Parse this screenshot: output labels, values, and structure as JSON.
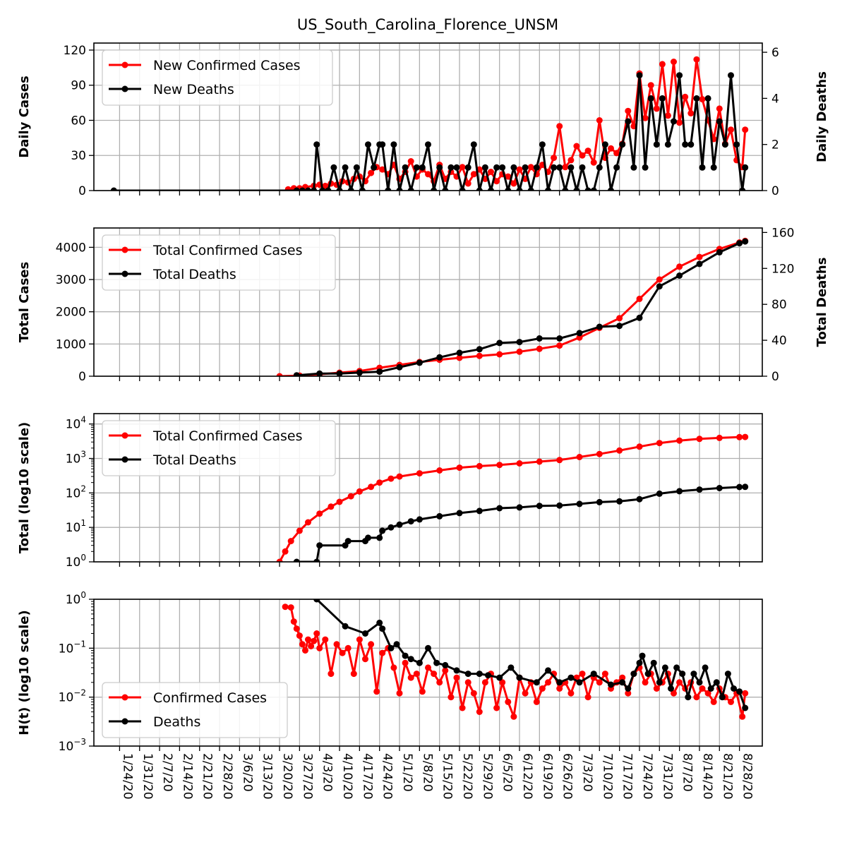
{
  "figure": {
    "title": "US_South_Carolina_Florence_UNSM"
  },
  "colors": {
    "cases": "#ff0000",
    "deaths": "#000000",
    "grid": "#b0b0b0"
  },
  "dates": [
    "1/24/20",
    "1/31/20",
    "2/7/20",
    "2/14/20",
    "2/21/20",
    "2/28/20",
    "3/6/20",
    "3/13/20",
    "3/20/20",
    "3/27/20",
    "4/3/20",
    "4/10/20",
    "4/17/20",
    "4/24/20",
    "5/1/20",
    "5/8/20",
    "5/15/20",
    "5/22/20",
    "5/29/20",
    "6/5/20",
    "6/12/20",
    "6/19/20",
    "6/26/20",
    "7/3/20",
    "7/10/20",
    "7/17/20",
    "7/24/20",
    "7/31/20",
    "8/7/20",
    "8/14/20",
    "8/21/20",
    "8/28/20"
  ],
  "chart_data": [
    {
      "type": "line",
      "title": "US_South_Carolina_Florence_UNSM",
      "ylabel": "Daily Cases",
      "ylabel_right": "Daily Deaths",
      "ylim": [
        0,
        126
      ],
      "yticks": [
        "0",
        "30",
        "60",
        "90",
        "120"
      ],
      "ylim_right": [
        0,
        6.4
      ],
      "yticks_right": [
        "0",
        "2",
        "4",
        "6"
      ],
      "grid": true,
      "legend": "upper-left",
      "series": [
        {
          "name": "New Confirmed Cases",
          "axis": "left",
          "x": [
            "3/23/20",
            "3/25/20",
            "3/27/20",
            "3/29/20",
            "4/1/20",
            "4/3/20",
            "4/5/20",
            "4/7/20",
            "4/9/20",
            "4/11/20",
            "4/13/20",
            "4/15/20",
            "4/17/20",
            "4/19/20",
            "4/21/20",
            "4/23/20",
            "4/25/20",
            "4/27/20",
            "4/29/20",
            "5/1/20",
            "5/3/20",
            "5/5/20",
            "5/7/20",
            "5/9/20",
            "5/11/20",
            "5/13/20",
            "5/15/20",
            "5/17/20",
            "5/19/20",
            "5/21/20",
            "5/23/20",
            "5/25/20",
            "5/27/20",
            "5/29/20",
            "5/31/20",
            "6/2/20",
            "6/4/20",
            "6/6/20",
            "6/8/20",
            "6/10/20",
            "6/12/20",
            "6/14/20",
            "6/16/20",
            "6/18/20",
            "6/20/20",
            "6/22/20",
            "6/24/20",
            "6/26/20",
            "6/28/20",
            "6/30/20",
            "7/2/20",
            "7/4/20",
            "7/6/20",
            "7/8/20",
            "7/10/20",
            "7/12/20",
            "7/14/20",
            "7/16/20",
            "7/18/20",
            "7/20/20",
            "7/22/20",
            "7/24/20",
            "7/26/20",
            "7/28/20",
            "7/30/20",
            "8/1/20",
            "8/3/20",
            "8/5/20",
            "8/7/20",
            "8/9/20",
            "8/11/20",
            "8/13/20",
            "8/15/20",
            "8/17/20",
            "8/19/20",
            "8/21/20",
            "8/23/20",
            "8/25/20",
            "8/27/20",
            "8/29/20",
            "8/30/20"
          ],
          "values": [
            1,
            2,
            2,
            3,
            4,
            5,
            4,
            6,
            5,
            8,
            7,
            10,
            12,
            8,
            15,
            20,
            18,
            14,
            22,
            10,
            16,
            25,
            12,
            18,
            14,
            8,
            22,
            10,
            16,
            12,
            20,
            6,
            14,
            18,
            10,
            16,
            8,
            14,
            12,
            6,
            18,
            10,
            20,
            14,
            22,
            16,
            28,
            55,
            20,
            26,
            38,
            30,
            34,
            24,
            60,
            28,
            36,
            32,
            40,
            68,
            55,
            100,
            62,
            90,
            70,
            108,
            64,
            110,
            58,
            80,
            66,
            112,
            78,
            60,
            44,
            70,
            40,
            52,
            26,
            20,
            52
          ]
        },
        {
          "name": "New Deaths",
          "axis": "right",
          "x": [
            "1/22/20",
            "3/26/20",
            "3/28/20",
            "3/30/20",
            "4/1/20",
            "4/2/20",
            "4/4/20",
            "4/6/20",
            "4/8/20",
            "4/10/20",
            "4/12/20",
            "4/14/20",
            "4/16/20",
            "4/18/20",
            "4/20/20",
            "4/22/20",
            "4/24/20",
            "4/25/20",
            "4/27/20",
            "4/29/20",
            "5/1/20",
            "5/3/20",
            "5/5/20",
            "5/7/20",
            "5/9/20",
            "5/11/20",
            "5/13/20",
            "5/15/20",
            "5/17/20",
            "5/19/20",
            "5/21/20",
            "5/23/20",
            "5/25/20",
            "5/27/20",
            "5/29/20",
            "5/31/20",
            "6/2/20",
            "6/4/20",
            "6/6/20",
            "6/8/20",
            "6/10/20",
            "6/12/20",
            "6/14/20",
            "6/16/20",
            "6/18/20",
            "6/20/20",
            "6/22/20",
            "6/24/20",
            "6/26/20",
            "6/28/20",
            "6/30/20",
            "7/2/20",
            "7/4/20",
            "7/6/20",
            "7/8/20",
            "7/10/20",
            "7/12/20",
            "7/14/20",
            "7/16/20",
            "7/18/20",
            "7/20/20",
            "7/22/20",
            "7/24/20",
            "7/26/20",
            "7/28/20",
            "7/30/20",
            "8/1/20",
            "8/3/20",
            "8/5/20",
            "8/7/20",
            "8/9/20",
            "8/11/20",
            "8/13/20",
            "8/15/20",
            "8/17/20",
            "8/19/20",
            "8/21/20",
            "8/23/20",
            "8/25/20",
            "8/27/20",
            "8/29/20",
            "8/30/20"
          ],
          "values": [
            0,
            0,
            0,
            0,
            0,
            2,
            0,
            0,
            1,
            0,
            1,
            0,
            1,
            0,
            2,
            1,
            2,
            2,
            0,
            2,
            0,
            1,
            0,
            1,
            1,
            2,
            0,
            1,
            0,
            1,
            1,
            0,
            1,
            2,
            0,
            1,
            0,
            1,
            1,
            0,
            1,
            0,
            1,
            0,
            1,
            2,
            0,
            1,
            1,
            0,
            1,
            0,
            1,
            0,
            0,
            1,
            2,
            0,
            1,
            2,
            3,
            1,
            5,
            1,
            4,
            2,
            4,
            2,
            3,
            5,
            2,
            2,
            4,
            1,
            4,
            1,
            3,
            2,
            5,
            2,
            0,
            1
          ]
        }
      ]
    },
    {
      "type": "line",
      "ylabel": "Total Cases",
      "ylabel_right": "Total Deaths",
      "ylim": [
        0,
        4600
      ],
      "yticks": [
        "0",
        "1000",
        "2000",
        "3000",
        "4000"
      ],
      "ylim_right": [
        0,
        165
      ],
      "yticks_right": [
        "0",
        "40",
        "80",
        "120",
        "160"
      ],
      "grid": true,
      "legend": "upper-left",
      "series": [
        {
          "name": "Total Confirmed Cases",
          "axis": "left",
          "x": [
            "3/20/20",
            "3/27/20",
            "4/3/20",
            "4/10/20",
            "4/17/20",
            "4/24/20",
            "5/1/20",
            "5/8/20",
            "5/15/20",
            "5/22/20",
            "5/29/20",
            "6/5/20",
            "6/12/20",
            "6/19/20",
            "6/26/20",
            "7/3/20",
            "7/10/20",
            "7/17/20",
            "7/24/20",
            "7/31/20",
            "8/7/20",
            "8/14/20",
            "8/21/20",
            "8/28/20",
            "8/30/20"
          ],
          "values": [
            1,
            20,
            60,
            110,
            160,
            260,
            350,
            440,
            510,
            570,
            630,
            680,
            760,
            850,
            950,
            1200,
            1500,
            1800,
            2400,
            3000,
            3400,
            3700,
            3950,
            4150,
            4200
          ]
        },
        {
          "name": "Total Deaths",
          "axis": "right",
          "x": [
            "3/26/20",
            "4/3/20",
            "4/10/20",
            "4/17/20",
            "4/24/20",
            "5/1/20",
            "5/8/20",
            "5/15/20",
            "5/22/20",
            "5/29/20",
            "6/5/20",
            "6/12/20",
            "6/19/20",
            "6/26/20",
            "7/3/20",
            "7/10/20",
            "7/17/20",
            "7/24/20",
            "7/31/20",
            "8/7/20",
            "8/14/20",
            "8/21/20",
            "8/28/20",
            "8/30/20"
          ],
          "values": [
            1,
            3,
            3,
            4,
            5,
            10,
            15,
            21,
            26,
            30,
            37,
            38,
            42,
            42,
            48,
            55,
            56,
            65,
            100,
            112,
            125,
            138,
            148,
            150
          ]
        }
      ]
    },
    {
      "type": "line",
      "ylabel": "Total (log10 scale)",
      "yscale": "log",
      "ylim": [
        1,
        20000
      ],
      "yticks": [
        "10^0",
        "10^1",
        "10^2",
        "10^3",
        "10^4"
      ],
      "grid": true,
      "legend": "upper-left",
      "series": [
        {
          "name": "Total Confirmed Cases",
          "x": [
            "3/20/20",
            "3/22/20",
            "3/24/20",
            "3/27/20",
            "3/30/20",
            "4/3/20",
            "4/7/20",
            "4/10/20",
            "4/14/20",
            "4/17/20",
            "4/21/20",
            "4/24/20",
            "4/28/20",
            "5/1/20",
            "5/8/20",
            "5/15/20",
            "5/22/20",
            "5/29/20",
            "6/5/20",
            "6/12/20",
            "6/19/20",
            "6/26/20",
            "7/3/20",
            "7/10/20",
            "7/17/20",
            "7/24/20",
            "7/31/20",
            "8/7/20",
            "8/14/20",
            "8/21/20",
            "8/28/20",
            "8/30/20"
          ],
          "values": [
            1,
            2,
            4,
            8,
            14,
            25,
            40,
            55,
            80,
            110,
            150,
            200,
            260,
            300,
            370,
            450,
            540,
            600,
            650,
            720,
            810,
            900,
            1100,
            1350,
            1700,
            2200,
            2800,
            3300,
            3700,
            3950,
            4150,
            4200
          ]
        },
        {
          "name": "Total Deaths",
          "x": [
            "3/26/20",
            "4/2/20",
            "4/3/20",
            "4/12/20",
            "4/13/20",
            "4/19/20",
            "4/20/20",
            "4/24/20",
            "4/25/20",
            "4/28/20",
            "5/1/20",
            "5/5/20",
            "5/8/20",
            "5/15/20",
            "5/22/20",
            "5/29/20",
            "6/5/20",
            "6/12/20",
            "6/19/20",
            "6/26/20",
            "7/3/20",
            "7/10/20",
            "7/17/20",
            "7/24/20",
            "7/31/20",
            "8/7/20",
            "8/14/20",
            "8/21/20",
            "8/28/20",
            "8/30/20"
          ],
          "values": [
            1,
            1,
            3,
            3,
            4,
            4,
            5,
            5,
            8,
            10,
            12,
            15,
            17,
            21,
            26,
            30,
            36,
            38,
            42,
            43,
            48,
            54,
            57,
            66,
            95,
            112,
            125,
            138,
            148,
            150
          ]
        }
      ]
    },
    {
      "type": "scatter",
      "ylabel": "H(t) (log10 scale)",
      "yscale": "log",
      "ylim": [
        0.001,
        1
      ],
      "yticks": [
        "10^-3",
        "10^-2",
        "10^-1",
        "10^0"
      ],
      "grid": true,
      "legend": "lower-left",
      "series": [
        {
          "name": "Confirmed Cases",
          "x": [
            "3/22/20",
            "3/24/20",
            "3/25/20",
            "3/26/20",
            "3/27/20",
            "3/28/20",
            "3/29/20",
            "3/30/20",
            "3/31/20",
            "4/1/20",
            "4/2/20",
            "4/3/20",
            "4/5/20",
            "4/7/20",
            "4/9/20",
            "4/11/20",
            "4/13/20",
            "4/15/20",
            "4/17/20",
            "4/19/20",
            "4/21/20",
            "4/23/20",
            "4/25/20",
            "4/27/20",
            "4/29/20",
            "5/1/20",
            "5/3/20",
            "5/5/20",
            "5/7/20",
            "5/9/20",
            "5/11/20",
            "5/13/20",
            "5/15/20",
            "5/17/20",
            "5/19/20",
            "5/21/20",
            "5/23/20",
            "5/25/20",
            "5/27/20",
            "5/29/20",
            "5/31/20",
            "6/2/20",
            "6/4/20",
            "6/6/20",
            "6/8/20",
            "6/10/20",
            "6/12/20",
            "6/14/20",
            "6/16/20",
            "6/18/20",
            "6/20/20",
            "6/22/20",
            "6/24/20",
            "6/26/20",
            "6/28/20",
            "6/30/20",
            "7/2/20",
            "7/4/20",
            "7/6/20",
            "7/8/20",
            "7/10/20",
            "7/12/20",
            "7/14/20",
            "7/16/20",
            "7/18/20",
            "7/20/20",
            "7/22/20",
            "7/24/20",
            "7/26/20",
            "7/28/20",
            "7/30/20",
            "8/1/20",
            "8/3/20",
            "8/5/20",
            "8/7/20",
            "8/9/20",
            "8/11/20",
            "8/13/20",
            "8/15/20",
            "8/17/20",
            "8/19/20",
            "8/21/20",
            "8/23/20",
            "8/25/20",
            "8/27/20",
            "8/29/20",
            "8/30/20"
          ],
          "values": [
            0.7,
            0.68,
            0.35,
            0.25,
            0.18,
            0.12,
            0.09,
            0.15,
            0.11,
            0.14,
            0.2,
            0.1,
            0.15,
            0.03,
            0.12,
            0.08,
            0.1,
            0.03,
            0.15,
            0.06,
            0.12,
            0.013,
            0.08,
            0.1,
            0.04,
            0.012,
            0.05,
            0.025,
            0.03,
            0.013,
            0.04,
            0.03,
            0.02,
            0.035,
            0.01,
            0.025,
            0.006,
            0.02,
            0.012,
            0.005,
            0.02,
            0.03,
            0.006,
            0.02,
            0.008,
            0.004,
            0.025,
            0.012,
            0.02,
            0.008,
            0.015,
            0.02,
            0.03,
            0.015,
            0.02,
            0.012,
            0.025,
            0.03,
            0.01,
            0.025,
            0.02,
            0.03,
            0.015,
            0.02,
            0.025,
            0.012,
            0.03,
            0.04,
            0.02,
            0.03,
            0.015,
            0.02,
            0.03,
            0.012,
            0.02,
            0.015,
            0.02,
            0.01,
            0.015,
            0.012,
            0.008,
            0.015,
            0.01,
            0.008,
            0.012,
            0.004,
            0.012
          ]
        },
        {
          "name": "Deaths",
          "x": [
            "4/2/20",
            "4/12/20",
            "4/19/20",
            "4/24/20",
            "4/25/20",
            "4/28/20",
            "4/30/20",
            "5/3/20",
            "5/5/20",
            "5/8/20",
            "5/11/20",
            "5/14/20",
            "5/17/20",
            "5/21/20",
            "5/25/20",
            "5/29/20",
            "6/1/20",
            "6/5/20",
            "6/9/20",
            "6/12/20",
            "6/18/20",
            "6/22/20",
            "6/26/20",
            "6/30/20",
            "7/3/20",
            "7/8/20",
            "7/14/20",
            "7/18/20",
            "7/20/20",
            "7/22/20",
            "7/24/20",
            "7/25/20",
            "7/27/20",
            "7/29/20",
            "7/31/20",
            "8/2/20",
            "8/4/20",
            "8/6/20",
            "8/8/20",
            "8/10/20",
            "8/12/20",
            "8/14/20",
            "8/16/20",
            "8/18/20",
            "8/20/20",
            "8/22/20",
            "8/24/20",
            "8/26/20",
            "8/28/20",
            "8/30/20"
          ],
          "values": [
            1,
            0.28,
            0.2,
            0.33,
            0.25,
            0.1,
            0.12,
            0.07,
            0.06,
            0.05,
            0.1,
            0.05,
            0.045,
            0.035,
            0.03,
            0.03,
            0.028,
            0.025,
            0.04,
            0.025,
            0.02,
            0.035,
            0.02,
            0.025,
            0.02,
            0.03,
            0.018,
            0.02,
            0.015,
            0.03,
            0.05,
            0.07,
            0.03,
            0.05,
            0.02,
            0.04,
            0.015,
            0.04,
            0.03,
            0.01,
            0.03,
            0.02,
            0.04,
            0.015,
            0.02,
            0.01,
            0.03,
            0.015,
            0.013,
            0.006
          ]
        }
      ]
    }
  ]
}
